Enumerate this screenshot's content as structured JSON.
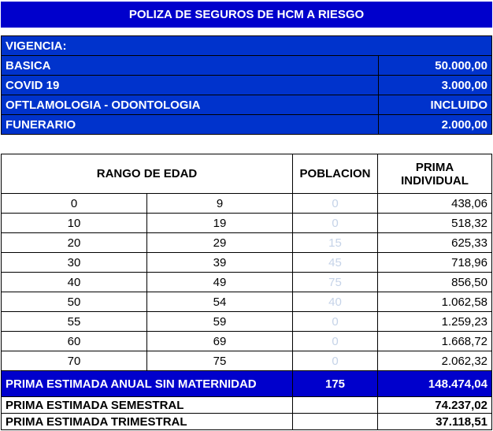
{
  "title": "POLIZA DE SEGUROS DE HCM A RIESGO",
  "coverage": {
    "header": "VIGENCIA:",
    "items": [
      {
        "label": "BASICA",
        "value": "50.000,00"
      },
      {
        "label": "COVID 19",
        "value": "3.000,00"
      },
      {
        "label": "OFTLAMOLOGIA - ODONTOLOGIA",
        "value": "INCLUIDO"
      },
      {
        "label": "FUNERARIO",
        "value": "2.000,00"
      }
    ]
  },
  "table": {
    "headers": {
      "age_range": "RANGO DE EDAD",
      "population": "POBLACION",
      "premium_line1": "PRIMA",
      "premium_line2": "INDIVIDUAL"
    },
    "rows": [
      {
        "from": "0",
        "to": "9",
        "population": "0",
        "premium": "438,06"
      },
      {
        "from": "10",
        "to": "19",
        "population": "0",
        "premium": "518,32"
      },
      {
        "from": "20",
        "to": "29",
        "population": "15",
        "premium": "625,33"
      },
      {
        "from": "30",
        "to": "39",
        "population": "45",
        "premium": "718,96"
      },
      {
        "from": "40",
        "to": "49",
        "population": "75",
        "premium": "856,50"
      },
      {
        "from": "50",
        "to": "54",
        "population": "40",
        "premium": "1.062,58"
      },
      {
        "from": "55",
        "to": "59",
        "population": "0",
        "premium": "1.259,23"
      },
      {
        "from": "60",
        "to": "69",
        "population": "0",
        "premium": "1.668,72"
      },
      {
        "from": "70",
        "to": "75",
        "population": "0",
        "premium": "2.062,32"
      }
    ],
    "annual": {
      "label": "PRIMA ESTIMADA ANUAL SIN MATERNIDAD",
      "population": "175",
      "value": "148.474,04"
    },
    "semestral": {
      "label": "PRIMA ESTIMADA SEMESTRAL",
      "value": "74.237,02"
    },
    "trimestral": {
      "label": "PRIMA ESTIMADA TRIMESTRAL",
      "value": "37.118,51"
    }
  },
  "colors": {
    "title_bg": "#0000cc",
    "coverage_bg": "#0033cc",
    "population_text": "#c5d3e8"
  }
}
